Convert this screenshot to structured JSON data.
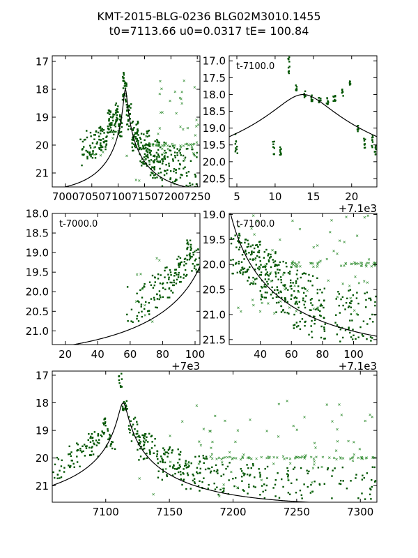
{
  "title": {
    "line1": "KMT-2015-BLG-0236 BLG02M3010.1455",
    "line2": "t0=7113.66 u0=0.0317 tE= 100.84"
  },
  "colors": {
    "data": "#005500",
    "model": "#000000",
    "axis": "#000000"
  },
  "model": {
    "t0": 7113.66,
    "u0": 0.0317,
    "tE": 100.84
  },
  "chart_data": [
    {
      "type": "scatter",
      "name": "panel-top-left",
      "xlim": [
        6975,
        7255
      ],
      "ylim": [
        21.5,
        16.8
      ],
      "xticks": [
        7000,
        7050,
        7100,
        7150,
        7200,
        7250
      ],
      "xtick_labels": [
        "7000",
        "7050",
        "7100",
        "7150",
        "7200",
        "7250"
      ],
      "yticks": [
        17,
        18,
        19,
        20,
        21
      ],
      "ytick_labels": [
        "17",
        "18",
        "19",
        "20",
        "21"
      ],
      "annotation": "",
      "offset_label": "",
      "x_offset": 0,
      "segments": [
        [
          7028,
          7040,
          20.2,
          0.55,
          12
        ],
        [
          7040,
          7060,
          19.95,
          0.55,
          30
        ],
        [
          7060,
          7080,
          19.7,
          0.5,
          40
        ],
        [
          7080,
          7095,
          19.2,
          0.45,
          40
        ],
        [
          7095,
          7100,
          18.85,
          0.35,
          20
        ],
        [
          7100,
          7108,
          19.3,
          0.4,
          25
        ],
        [
          7108,
          7112,
          17.9,
          0.5,
          15
        ],
        [
          7112,
          7116,
          18.1,
          0.35,
          15
        ],
        [
          7116,
          7125,
          19.0,
          0.5,
          25
        ],
        [
          7125,
          7140,
          19.7,
          0.55,
          45
        ],
        [
          7140,
          7160,
          20.1,
          0.65,
          60
        ],
        [
          7160,
          7180,
          20.5,
          0.7,
          50
        ],
        [
          7180,
          7210,
          20.7,
          0.8,
          50
        ],
        [
          7210,
          7250,
          20.9,
          0.8,
          50
        ]
      ],
      "crosses": [
        [
          7160,
          7255,
          20.0,
          0.05,
          25
        ],
        [
          7150,
          7255,
          19.0,
          1.4,
          35
        ],
        [
          7050,
          7250,
          20.5,
          1.0,
          15
        ]
      ]
    },
    {
      "type": "scatter",
      "name": "panel-top-right",
      "xlim": [
        4.0,
        23.3
      ],
      "ylim": [
        20.75,
        16.85
      ],
      "xticks": [
        5,
        10,
        15,
        20
      ],
      "xtick_labels": [
        "5",
        "10",
        "15",
        "20"
      ],
      "yticks": [
        17.0,
        17.5,
        18.0,
        18.5,
        19.0,
        19.5,
        20.0,
        20.5
      ],
      "ytick_labels": [
        "17.0",
        "17.5",
        "18.0",
        "18.5",
        "19.0",
        "19.5",
        "20.0",
        "20.5"
      ],
      "annotation": "t-7100.0",
      "offset_label": "+7.1e3",
      "x_offset": 7100,
      "segments": [
        [
          4.8,
          5.1,
          19.45,
          0.35,
          10
        ],
        [
          9.7,
          9.9,
          19.6,
          0.2,
          8
        ],
        [
          10.6,
          10.8,
          19.65,
          0.15,
          8
        ],
        [
          11.7,
          11.9,
          17.3,
          0.45,
          10
        ],
        [
          12.7,
          12.9,
          17.8,
          0.1,
          8
        ],
        [
          13.7,
          14.0,
          18.0,
          0.1,
          8
        ],
        [
          14.7,
          15.0,
          18.1,
          0.1,
          8
        ],
        [
          15.7,
          16.0,
          18.15,
          0.1,
          8
        ],
        [
          16.7,
          17.0,
          18.2,
          0.1,
          8
        ],
        [
          17.6,
          17.9,
          18.1,
          0.1,
          8
        ],
        [
          18.7,
          18.9,
          17.95,
          0.1,
          6
        ],
        [
          19.7,
          19.9,
          17.7,
          0.1,
          6
        ],
        [
          20.7,
          20.9,
          19.05,
          0.15,
          6
        ],
        [
          21.6,
          21.8,
          19.45,
          0.15,
          8
        ],
        [
          22.6,
          22.8,
          19.4,
          0.2,
          8
        ],
        [
          23.0,
          23.2,
          19.6,
          0.2,
          8
        ]
      ],
      "crosses": []
    },
    {
      "type": "scatter",
      "name": "panel-middle-left",
      "xlim": [
        12,
        103
      ],
      "ylim": [
        21.35,
        18.0
      ],
      "xticks": [
        20,
        40,
        60,
        80,
        100
      ],
      "xtick_labels": [
        "20",
        "40",
        "60",
        "80",
        "100"
      ],
      "yticks": [
        18.0,
        18.5,
        19.0,
        19.5,
        20.0,
        20.5,
        21.0
      ],
      "ytick_labels": [
        "18.0",
        "18.5",
        "19.0",
        "19.5",
        "20.0",
        "20.5",
        "21.0"
      ],
      "annotation": "t-7000.0",
      "offset_label": "+7e3",
      "x_offset": 7000,
      "segments": [
        [
          58,
          65,
          20.35,
          0.5,
          10
        ],
        [
          65,
          72,
          20.25,
          0.5,
          20
        ],
        [
          72,
          80,
          20.0,
          0.45,
          25
        ],
        [
          80,
          88,
          19.75,
          0.4,
          30
        ],
        [
          88,
          95,
          19.45,
          0.35,
          30
        ],
        [
          95,
          98,
          18.9,
          0.3,
          20
        ],
        [
          98,
          103,
          19.2,
          0.3,
          20
        ]
      ],
      "crosses": [
        [
          60,
          80,
          20.0,
          0.9,
          10
        ]
      ]
    },
    {
      "type": "scatter",
      "name": "panel-middle-right",
      "xlim": [
        20,
        115
      ],
      "ylim": [
        21.6,
        18.98
      ],
      "xticks": [
        40,
        60,
        80,
        100
      ],
      "xtick_labels": [
        "40",
        "60",
        "80",
        "100"
      ],
      "yticks": [
        19.0,
        19.5,
        20.0,
        20.5,
        21.0,
        21.5
      ],
      "ytick_labels": [
        "19.0",
        "19.5",
        "20.0",
        "20.5",
        "21.0",
        "21.5"
      ],
      "annotation": "t-7100.0",
      "offset_label": "+7.1e3",
      "x_offset": 7100,
      "segments": [
        [
          21,
          30,
          19.8,
          0.45,
          40
        ],
        [
          30,
          40,
          19.95,
          0.45,
          60
        ],
        [
          40,
          50,
          20.2,
          0.5,
          60
        ],
        [
          50,
          60,
          20.45,
          0.55,
          60
        ],
        [
          60,
          70,
          20.7,
          0.6,
          50
        ],
        [
          70,
          82,
          20.85,
          0.65,
          50
        ],
        [
          88,
          98,
          21.0,
          0.55,
          30
        ],
        [
          98,
          115,
          21.05,
          0.5,
          40
        ]
      ],
      "crosses": [
        [
          60,
          80,
          20.0,
          0.05,
          20
        ],
        [
          90,
          115,
          20.0,
          0.04,
          25
        ],
        [
          25,
          115,
          20.0,
          1.0,
          60
        ]
      ]
    },
    {
      "type": "scatter",
      "name": "panel-bottom",
      "xlim": [
        7058,
        7313
      ],
      "ylim": [
        21.6,
        16.85
      ],
      "xticks": [
        7100,
        7150,
        7200,
        7250,
        7300
      ],
      "xtick_labels": [
        "7100",
        "7150",
        "7200",
        "7250",
        "7300"
      ],
      "yticks": [
        17,
        18,
        19,
        20,
        21
      ],
      "ytick_labels": [
        "17",
        "18",
        "19",
        "20",
        "21"
      ],
      "annotation": "",
      "offset_label": "",
      "x_offset": 0,
      "segments": [
        [
          7058,
          7070,
          20.35,
          0.4,
          15
        ],
        [
          7070,
          7085,
          19.9,
          0.45,
          30
        ],
        [
          7085,
          7096,
          19.5,
          0.45,
          30
        ],
        [
          7096,
          7100,
          18.9,
          0.35,
          15
        ],
        [
          7100,
          7108,
          19.3,
          0.4,
          15
        ],
        [
          7110,
          7113,
          17.2,
          0.3,
          10
        ],
        [
          7113,
          7117,
          18.1,
          0.25,
          15
        ],
        [
          7118,
          7125,
          18.9,
          0.5,
          20
        ],
        [
          7125,
          7140,
          19.6,
          0.5,
          45
        ],
        [
          7140,
          7160,
          20.2,
          0.6,
          60
        ],
        [
          7160,
          7180,
          20.55,
          0.65,
          50
        ],
        [
          7180,
          7200,
          20.75,
          0.6,
          30
        ],
        [
          7200,
          7230,
          20.85,
          0.65,
          40
        ],
        [
          7230,
          7260,
          20.9,
          0.6,
          30
        ],
        [
          7260,
          7313,
          20.9,
          0.6,
          40
        ]
      ],
      "crosses": [
        [
          7180,
          7313,
          20.0,
          0.05,
          60
        ],
        [
          7150,
          7313,
          19.2,
          1.3,
          50
        ],
        [
          7100,
          7313,
          20.5,
          1.0,
          20
        ]
      ]
    }
  ]
}
